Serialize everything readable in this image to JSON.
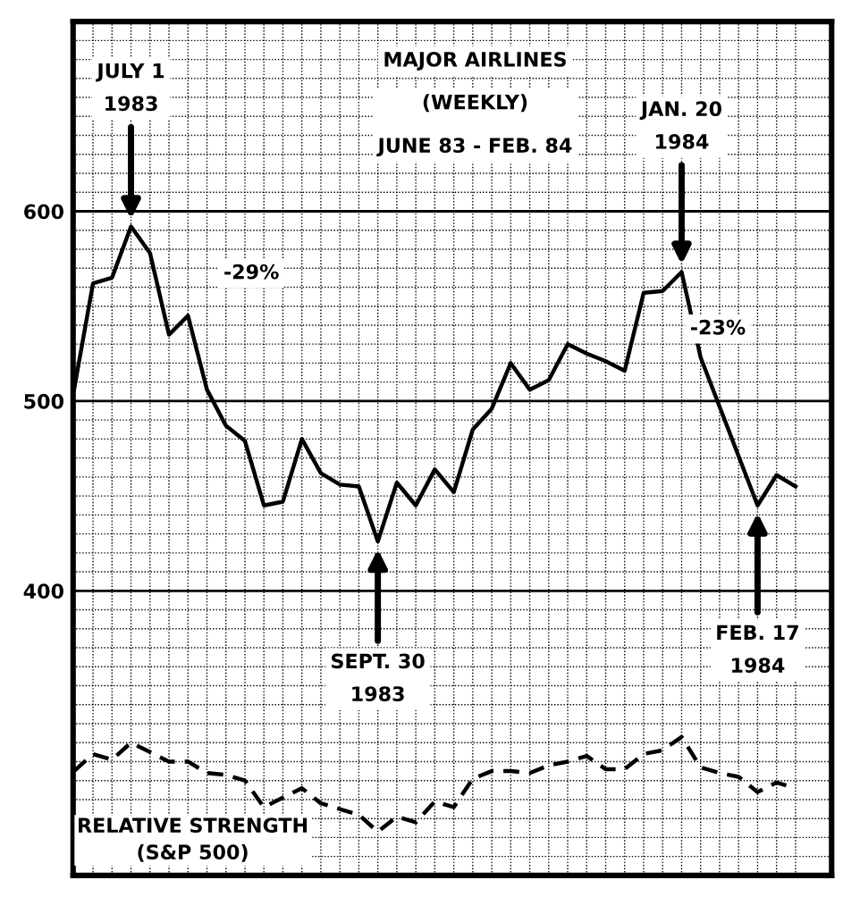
{
  "chart_data": {
    "type": "line",
    "title": "MAJOR AIRLINES",
    "subtitle": "(WEEKLY)\nJUNE 83 - FEB. 84",
    "categories": [
      null,
      null,
      null,
      null,
      null,
      null,
      null,
      null,
      null,
      null,
      null,
      null,
      null,
      null,
      null,
      null,
      null,
      null,
      null,
      null,
      null,
      null,
      null,
      null,
      null,
      null,
      null,
      null,
      null,
      null,
      null,
      null,
      null,
      null,
      null,
      null,
      null,
      null,
      null
    ],
    "series": [
      {
        "color": "#000000",
        "line_style": "solid",
        "values": [
          506,
          562,
          565,
          592,
          578,
          535,
          545,
          506,
          487,
          479,
          445,
          447,
          480,
          462,
          456,
          455,
          426,
          457,
          445,
          464,
          452,
          485,
          496,
          520,
          506,
          511,
          530,
          525,
          521,
          516,
          557,
          558,
          568,
          523,
          497,
          471,
          445,
          461,
          455
        ]
      },
      {
        "name": "RELATIVE STRENGTH\n(S&P 500)",
        "color": "#000000",
        "line_style": "dashed",
        "values": [
          305,
          314,
          311,
          320,
          315,
          310,
          310,
          304,
          303,
          300,
          286,
          291,
          296,
          288,
          285,
          282,
          273,
          281,
          278,
          289,
          286,
          301,
          305,
          305,
          304,
          308,
          310,
          313,
          306,
          306,
          314,
          316,
          323,
          307,
          304,
          302,
          294,
          299,
          296
        ]
      }
    ],
    "ylim": [
      250,
      700
    ],
    "yticks": [
      {
        "value": 260,
        "label": null
      },
      {
        "value": 270,
        "label": null
      },
      {
        "value": 280,
        "label": null
      },
      {
        "value": 290,
        "label": null
      },
      {
        "value": 300,
        "label": null
      },
      {
        "value": 310,
        "label": null
      },
      {
        "value": 320,
        "label": null
      },
      {
        "value": 330,
        "label": null
      },
      {
        "value": 340,
        "label": null
      },
      {
        "value": 350,
        "label": null
      },
      {
        "value": 360,
        "label": null
      },
      {
        "value": 370,
        "label": null
      },
      {
        "value": 380,
        "label": null
      },
      {
        "value": 390,
        "label": null
      },
      400,
      {
        "value": 410,
        "label": null
      },
      {
        "value": 420,
        "label": null
      },
      {
        "value": 430,
        "label": null
      },
      {
        "value": 440,
        "label": null
      },
      {
        "value": 450,
        "label": null
      },
      {
        "value": 460,
        "label": null
      },
      {
        "value": 470,
        "label": null
      },
      {
        "value": 480,
        "label": null
      },
      {
        "value": 490,
        "label": null
      },
      500,
      {
        "value": 510,
        "label": null
      },
      {
        "value": 520,
        "label": null
      },
      {
        "value": 530,
        "label": null
      },
      {
        "value": 540,
        "label": null
      },
      {
        "value": 550,
        "label": null
      },
      {
        "value": 560,
        "label": null
      },
      {
        "value": 570,
        "label": null
      },
      {
        "value": 580,
        "label": null
      },
      {
        "value": 590,
        "label": null
      },
      600,
      {
        "value": 610,
        "label": null
      },
      {
        "value": 620,
        "label": null
      },
      {
        "value": 630,
        "label": null
      },
      {
        "value": 640,
        "label": null
      },
      {
        "value": 650,
        "label": null
      },
      {
        "value": 660,
        "label": null
      },
      {
        "value": 670,
        "label": null
      },
      {
        "value": 680,
        "label": null
      },
      {
        "value": 690,
        "label": null
      }
    ],
    "tick_labels": "y",
    "grid": true,
    "marker": "none",
    "legend": false,
    "annotations": [
      {
        "text": "JULY 1\n1983",
        "y": 592
      },
      {
        "text": "SEPT. 30\n1983",
        "y": 426
      },
      {
        "text": "JAN. 20\n1984",
        "y": 568
      },
      {
        "text": "FEB. 17\n1984",
        "y": 445
      },
      "-29%",
      "-23%"
    ]
  }
}
